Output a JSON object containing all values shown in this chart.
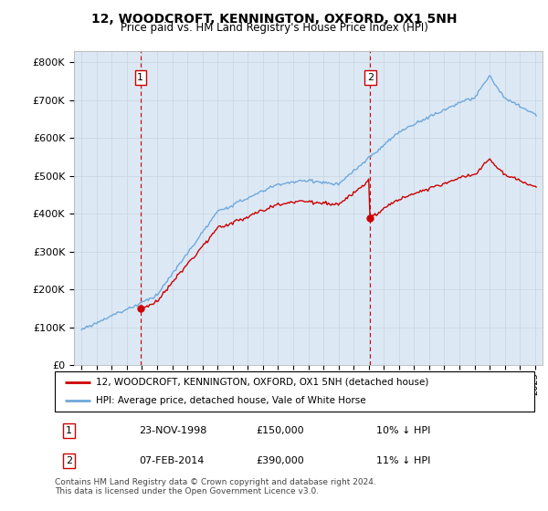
{
  "title": "12, WOODCROFT, KENNINGTON, OXFORD, OX1 5NH",
  "subtitle": "Price paid vs. HM Land Registry's House Price Index (HPI)",
  "legend_line1": "12, WOODCROFT, KENNINGTON, OXFORD, OX1 5NH (detached house)",
  "legend_line2": "HPI: Average price, detached house, Vale of White Horse",
  "annotation1_label": "1",
  "annotation1_date": "23-NOV-1998",
  "annotation1_price": "£150,000",
  "annotation1_hpi": "10% ↓ HPI",
  "annotation2_label": "2",
  "annotation2_date": "07-FEB-2014",
  "annotation2_price": "£390,000",
  "annotation2_hpi": "11% ↓ HPI",
  "footer": "Contains HM Land Registry data © Crown copyright and database right 2024.\nThis data is licensed under the Open Government Licence v3.0.",
  "sale1_year": 1998.9,
  "sale1_value": 150000,
  "sale2_year": 2014.1,
  "sale2_value": 390000,
  "hpi_color": "#6fa8dc",
  "price_color": "#cc0000",
  "vline_color": "#cc0000",
  "grid_color": "#c8d4e0",
  "chart_bg": "#dce9f5",
  "background_color": "#ffffff",
  "ylim": [
    0,
    830000
  ],
  "yticks": [
    0,
    100000,
    200000,
    300000,
    400000,
    500000,
    600000,
    700000,
    800000
  ],
  "xlim_start": 1994.5,
  "xlim_end": 2025.5
}
